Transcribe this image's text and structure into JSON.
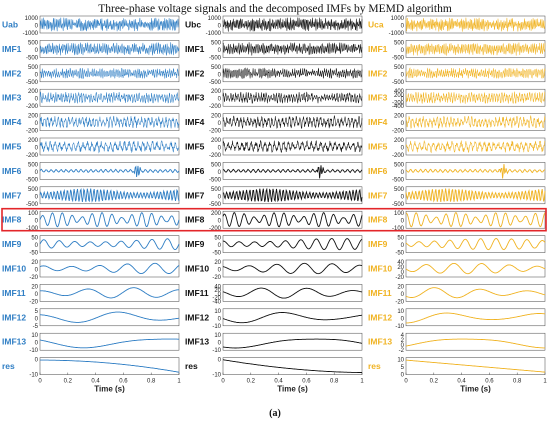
{
  "figure": {
    "title": "Three-phase voltage signals and the decomposed IMFs by MEMD algorithm",
    "caption": "(a)",
    "highlight_color": "#e3262a"
  },
  "chart_data": [
    {
      "type": "line",
      "phase": "Uab",
      "color": "#2f7ec4",
      "xlabel": "Time (s)",
      "xlim": [
        0,
        1
      ],
      "xticks": [
        "0",
        "0.2",
        "0.4",
        "0.6",
        "0.8",
        "1"
      ],
      "rows": [
        {
          "label": "Uab",
          "ticks": [
            "1000",
            "0",
            "-1000"
          ],
          "ylim": [
            -1000,
            1000
          ]
        },
        {
          "label": "IMF1",
          "ticks": [
            "500",
            "0",
            "-500"
          ],
          "ylim": [
            -500,
            500
          ]
        },
        {
          "label": "IMF2",
          "ticks": [
            "500",
            "0",
            "-500"
          ],
          "ylim": [
            -500,
            500
          ]
        },
        {
          "label": "IMF3",
          "ticks": [
            "200",
            "0",
            "-200"
          ],
          "ylim": [
            -200,
            200
          ]
        },
        {
          "label": "IMF4",
          "ticks": [
            "200",
            "0",
            "-200"
          ],
          "ylim": [
            -200,
            200
          ]
        },
        {
          "label": "IMF5",
          "ticks": [
            "200",
            "0",
            "-200"
          ],
          "ylim": [
            -200,
            200
          ]
        },
        {
          "label": "IMF6",
          "ticks": [
            "500",
            "0",
            "-500"
          ],
          "ylim": [
            -500,
            500
          ]
        },
        {
          "label": "IMF7",
          "ticks": [
            "500",
            "0",
            "-500"
          ],
          "ylim": [
            -500,
            500
          ]
        },
        {
          "label": "IMF8",
          "ticks": [
            "100",
            "0",
            "-100"
          ],
          "ylim": [
            -100,
            100
          ]
        },
        {
          "label": "IMF9",
          "ticks": [
            "50",
            "0",
            "-50"
          ],
          "ylim": [
            -50,
            50
          ]
        },
        {
          "label": "IMF10",
          "ticks": [
            "20",
            "0",
            "-20"
          ],
          "ylim": [
            -20,
            20
          ]
        },
        {
          "label": "IMF11",
          "ticks": [
            "20",
            "0",
            "-20"
          ],
          "ylim": [
            -20,
            20
          ]
        },
        {
          "label": "IMF12",
          "ticks": [
            "5",
            "0",
            "-5"
          ],
          "ylim": [
            -5,
            5
          ]
        },
        {
          "label": "IMF13",
          "ticks": [
            "10",
            "0",
            "-10"
          ],
          "ylim": [
            -10,
            10
          ]
        },
        {
          "label": "res",
          "ticks": [
            "0",
            "-10"
          ],
          "ylim": [
            -10,
            0
          ]
        }
      ]
    },
    {
      "type": "line",
      "phase": "Ubc",
      "color": "#111111",
      "xlabel": "Time (s)",
      "xlim": [
        0,
        1
      ],
      "xticks": [
        "0",
        "0.2",
        "0.4",
        "0.6",
        "0.8",
        "1"
      ],
      "rows": [
        {
          "label": "Ubc",
          "ticks": [
            "1000",
            "0",
            "-1000"
          ],
          "ylim": [
            -1000,
            1000
          ]
        },
        {
          "label": "IMF1",
          "ticks": [
            "500",
            "0",
            "-500"
          ],
          "ylim": [
            -500,
            500
          ]
        },
        {
          "label": "IMF2",
          "ticks": [
            "500",
            "0",
            "-500"
          ],
          "ylim": [
            -500,
            500
          ]
        },
        {
          "label": "IMF3",
          "ticks": [
            "200",
            "0",
            "-200"
          ],
          "ylim": [
            -200,
            200
          ]
        },
        {
          "label": "IMF4",
          "ticks": [
            "200",
            "0",
            "-200"
          ],
          "ylim": [
            -200,
            200
          ]
        },
        {
          "label": "IMF5",
          "ticks": [
            "200",
            "0",
            "-200"
          ],
          "ylim": [
            -200,
            200
          ]
        },
        {
          "label": "IMF6",
          "ticks": [
            "500",
            "0",
            "-500"
          ],
          "ylim": [
            -500,
            500
          ]
        },
        {
          "label": "IMF7",
          "ticks": [
            "500",
            "0",
            "-500"
          ],
          "ylim": [
            -500,
            500
          ]
        },
        {
          "label": "IMF8",
          "ticks": [
            "200",
            "0",
            "-200"
          ],
          "ylim": [
            -200,
            200
          ]
        },
        {
          "label": "IMF9",
          "ticks": [
            "50",
            "0",
            "-50"
          ],
          "ylim": [
            -50,
            50
          ]
        },
        {
          "label": "IMF10",
          "ticks": [
            "20",
            "0",
            "-20"
          ],
          "ylim": [
            -20,
            20
          ]
        },
        {
          "label": "IMF11",
          "ticks": [
            "40",
            "20",
            "0",
            "-20",
            "-40"
          ],
          "ylim": [
            -40,
            40
          ]
        },
        {
          "label": "IMF12",
          "ticks": [
            "10",
            "0",
            "-10"
          ],
          "ylim": [
            -10,
            10
          ]
        },
        {
          "label": "IMF13",
          "ticks": [
            "10",
            "0",
            "-10"
          ],
          "ylim": [
            -10,
            10
          ]
        },
        {
          "label": "res",
          "ticks": [
            "0",
            "-10"
          ],
          "ylim": [
            -10,
            0
          ]
        }
      ]
    },
    {
      "type": "line",
      "phase": "Uca",
      "color": "#f0b323",
      "xlabel": "Time (s)",
      "xlim": [
        0,
        1
      ],
      "xticks": [
        "0",
        "0.2",
        "0.4",
        "0.6",
        "0.8",
        "1"
      ],
      "rows": [
        {
          "label": "Uca",
          "ticks": [
            "1000",
            "0",
            "-1000"
          ],
          "ylim": [
            -1000,
            1000
          ]
        },
        {
          "label": "IMF1",
          "ticks": [
            "500",
            "0",
            "-500"
          ],
          "ylim": [
            -500,
            500
          ]
        },
        {
          "label": "IMF2",
          "ticks": [
            "500",
            "0",
            "-500"
          ],
          "ylim": [
            -500,
            500
          ]
        },
        {
          "label": "IMF3",
          "ticks": [
            "400",
            "200",
            "0",
            "-200",
            "-400"
          ],
          "ylim": [
            -400,
            400
          ]
        },
        {
          "label": "IMF4",
          "ticks": [
            "200",
            "0",
            "-200"
          ],
          "ylim": [
            -200,
            200
          ]
        },
        {
          "label": "IMF5",
          "ticks": [
            "200",
            "0",
            "-200"
          ],
          "ylim": [
            -200,
            200
          ]
        },
        {
          "label": "IMF6",
          "ticks": [
            "500",
            "0",
            "-500"
          ],
          "ylim": [
            -500,
            500
          ]
        },
        {
          "label": "IMF7",
          "ticks": [
            "500",
            "0",
            "-500"
          ],
          "ylim": [
            -500,
            500
          ]
        },
        {
          "label": "IMF8",
          "ticks": [
            "100",
            "0",
            "-100"
          ],
          "ylim": [
            -100,
            100
          ]
        },
        {
          "label": "IMF9",
          "ticks": [
            "50",
            "0",
            "-50"
          ],
          "ylim": [
            -50,
            50
          ]
        },
        {
          "label": "IMF10",
          "ticks": [
            "40",
            "20",
            "0",
            "-20"
          ],
          "ylim": [
            -20,
            40
          ]
        },
        {
          "label": "IMF11",
          "ticks": [
            "20",
            "0",
            "-20"
          ],
          "ylim": [
            -20,
            20
          ]
        },
        {
          "label": "IMF12",
          "ticks": [
            "10",
            "0",
            "-10"
          ],
          "ylim": [
            -10,
            10
          ]
        },
        {
          "label": "IMF13",
          "ticks": [
            "4",
            "2",
            "0",
            "-2"
          ],
          "ylim": [
            -2,
            4
          ]
        },
        {
          "label": "res",
          "ticks": [
            "10",
            "5",
            "0"
          ],
          "ylim": [
            0,
            10
          ]
        }
      ]
    }
  ]
}
